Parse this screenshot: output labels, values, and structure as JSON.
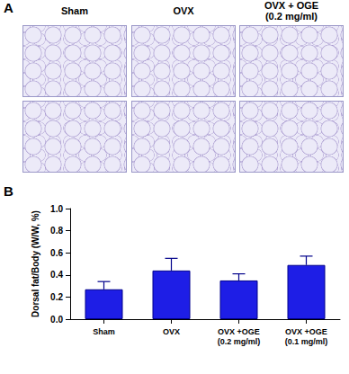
{
  "panel_a": {
    "label": "A",
    "columns": [
      [
        "Sham"
      ],
      [
        "OVX"
      ],
      [
        "OVX + OGE",
        "(0.2 mg/ml)"
      ]
    ]
  },
  "panel_b": {
    "label": "B"
  },
  "chart_data": {
    "type": "bar",
    "categories": [
      "Sham",
      "OVX",
      "OVX +OGE\n(0.2 mg/ml)",
      "OVX +OGE\n(0.1 mg/ml)"
    ],
    "values": [
      0.27,
      0.44,
      0.35,
      0.49
    ],
    "errors": [
      0.07,
      0.11,
      0.06,
      0.08
    ],
    "color": "#1e1ee6",
    "ylabel": "Dorsal fat/Body (W/W, %)",
    "ylim": [
      0,
      1.0
    ],
    "yticks": [
      {
        "value": 0,
        "label": "0.0"
      },
      {
        "value": 0.2,
        "label": "0.2"
      },
      {
        "value": 0.4,
        "label": "0.4"
      },
      {
        "value": 0.6,
        "label": "0.6"
      },
      {
        "value": 0.8,
        "label": "0.8"
      },
      {
        "value": 1.0,
        "label": "1.0"
      }
    ],
    "grid": false
  }
}
